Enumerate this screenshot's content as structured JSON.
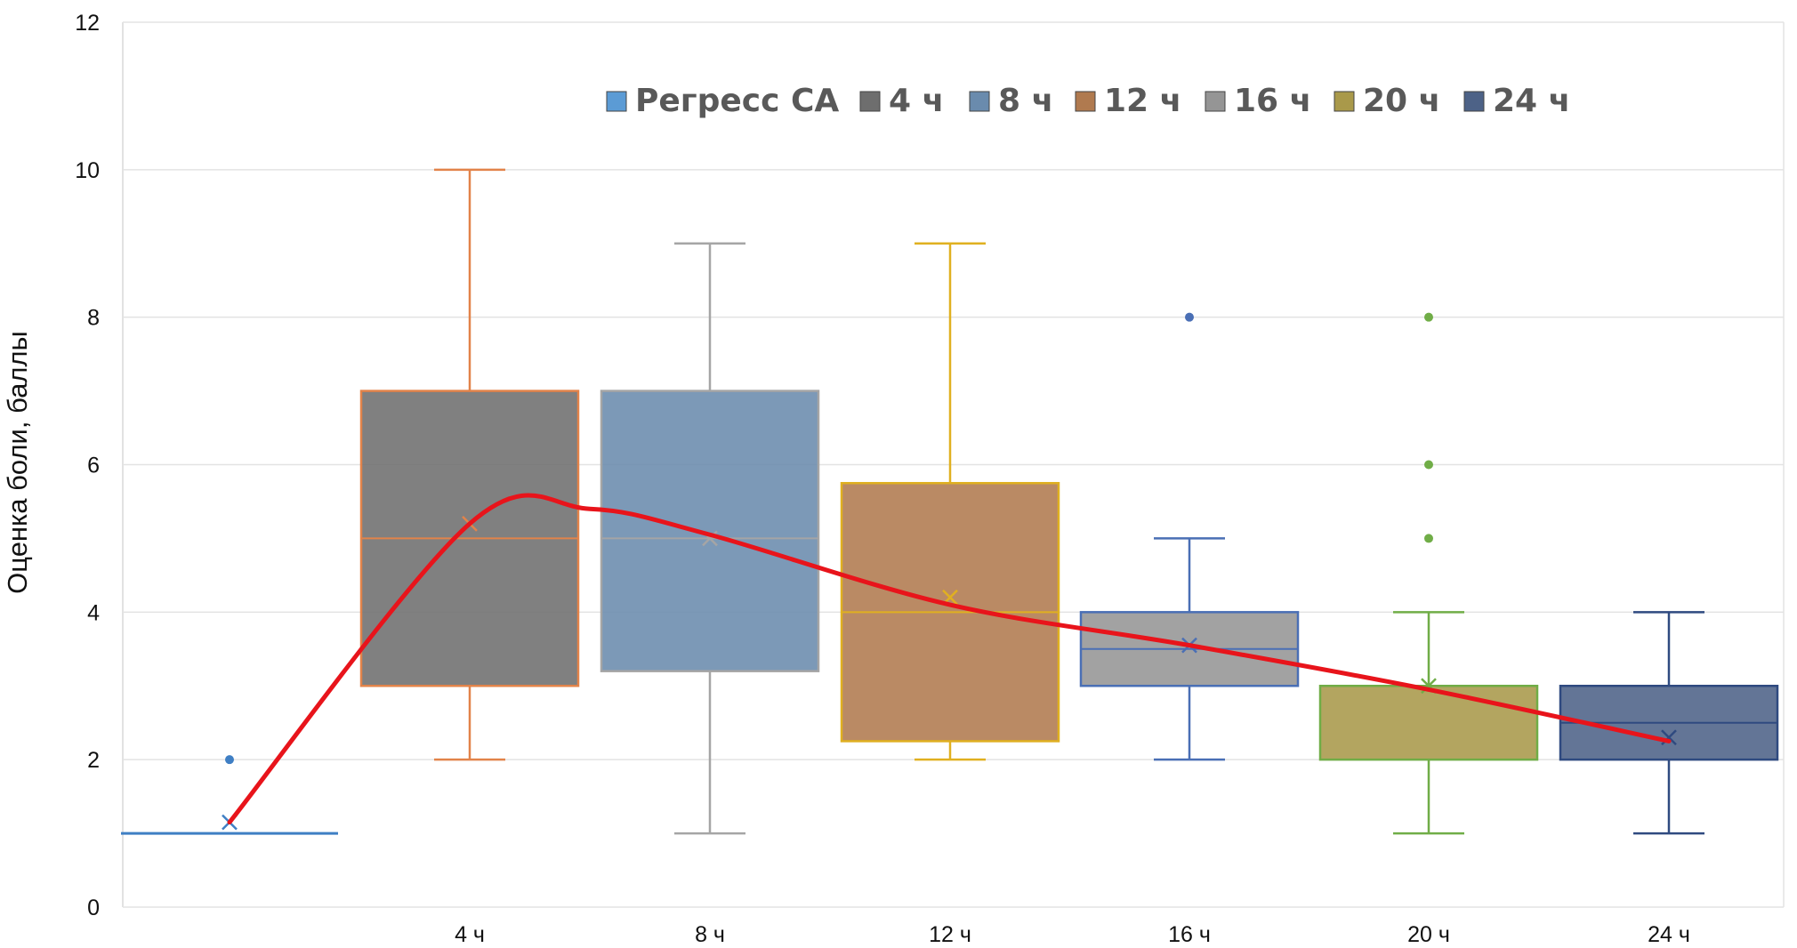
{
  "chart_data": {
    "type": "box",
    "title": "",
    "xlabel": "",
    "ylabel": "Оценка боли, баллы",
    "ylim": [
      0,
      12
    ],
    "yticks": [
      0,
      2,
      4,
      6,
      8,
      10,
      12
    ],
    "grid": true,
    "legend_position": "top",
    "legend": [
      {
        "label": "Регресс СА",
        "color": "#5b9bd5"
      },
      {
        "label": "4 ч",
        "color": "#6e6e6e"
      },
      {
        "label": "8 ч",
        "color": "#6a8bad"
      },
      {
        "label": "12 ч",
        "color": "#b07a4f"
      },
      {
        "label": "16 ч",
        "color": "#959595"
      },
      {
        "label": "20 ч",
        "color": "#a9994a"
      },
      {
        "label": "24 ч",
        "color": "#4d6287"
      }
    ],
    "categories": [
      "",
      "4 ч",
      "8 ч",
      "12 ч",
      "16 ч",
      "20 ч",
      "24 ч"
    ],
    "series": [
      {
        "name": "Регресс СА",
        "min": 1,
        "q1": 1,
        "median": 1,
        "q3": 1,
        "max": 1,
        "mean": 1.15,
        "outliers": [
          2
        ],
        "fill": "#5b9bd5",
        "stroke": "#3f7fc4"
      },
      {
        "name": "4 ч",
        "min": 2,
        "q1": 3,
        "median": 5,
        "q3": 7,
        "max": 10,
        "mean": 5.2,
        "outliers": [],
        "fill": "#6e6e6e",
        "stroke": "#e2834a"
      },
      {
        "name": "8 ч",
        "min": 1,
        "q1": 3.2,
        "median": 5,
        "q3": 7,
        "max": 9,
        "mean": 5.0,
        "outliers": [],
        "fill": "#6a8bad",
        "stroke": "#a5a5a5"
      },
      {
        "name": "12 ч",
        "min": 2,
        "q1": 2.25,
        "median": 4,
        "q3": 5.75,
        "max": 9,
        "mean": 4.2,
        "outliers": [],
        "fill": "#b07a4f",
        "stroke": "#e0b020"
      },
      {
        "name": "16 ч",
        "min": 2,
        "q1": 3,
        "median": 3.5,
        "q3": 4,
        "max": 5,
        "mean": 3.55,
        "outliers": [
          8
        ],
        "fill": "#959595",
        "stroke": "#4a6fb5"
      },
      {
        "name": "20 ч",
        "min": 1,
        "q1": 2,
        "median": 3,
        "q3": 3,
        "max": 4,
        "mean": 3.0,
        "outliers": [
          5,
          6,
          8
        ],
        "fill": "#a9994a",
        "stroke": "#70ad47"
      },
      {
        "name": "24 ч",
        "min": 1,
        "q1": 2,
        "median": 2.5,
        "q3": 3,
        "max": 4,
        "mean": 2.3,
        "outliers": [],
        "fill": "#4d6287",
        "stroke": "#2f4a80"
      }
    ],
    "trend_line": {
      "color": "#e8141b",
      "points": [
        {
          "category": 0,
          "y": 1.15
        },
        {
          "category": 1,
          "y": 5.2
        },
        {
          "category": 1.5,
          "y": 5.4
        },
        {
          "category": 2,
          "y": 5.05
        },
        {
          "category": 3,
          "y": 4.1
        },
        {
          "category": 4,
          "y": 3.55
        },
        {
          "category": 5,
          "y": 2.95
        },
        {
          "category": 6,
          "y": 2.25
        }
      ]
    }
  }
}
